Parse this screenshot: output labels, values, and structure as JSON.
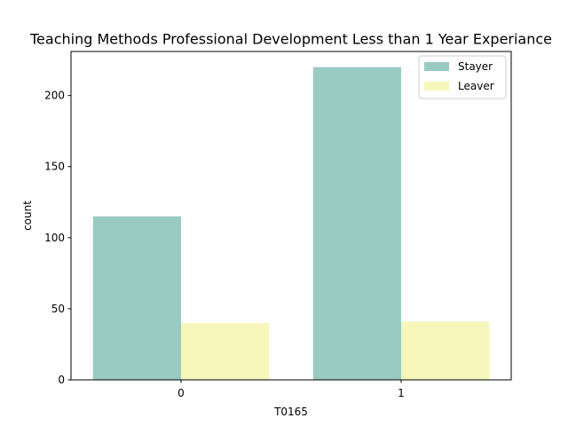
{
  "chart_data": {
    "type": "bar",
    "title": "Teaching Methods Professional Development Less than 1 Year Experiance",
    "xlabel": "T0165",
    "ylabel": "count",
    "categories": [
      "0",
      "1"
    ],
    "series": [
      {
        "name": "Stayer",
        "values": [
          115,
          220
        ],
        "color": "#99cbc3"
      },
      {
        "name": "Leaver",
        "values": [
          40,
          41
        ],
        "color": "#f7f6bb"
      }
    ],
    "ylim": [
      0,
      231
    ],
    "yticks": [
      0,
      50,
      100,
      150,
      200
    ],
    "grid": false,
    "legend": "top-right"
  }
}
